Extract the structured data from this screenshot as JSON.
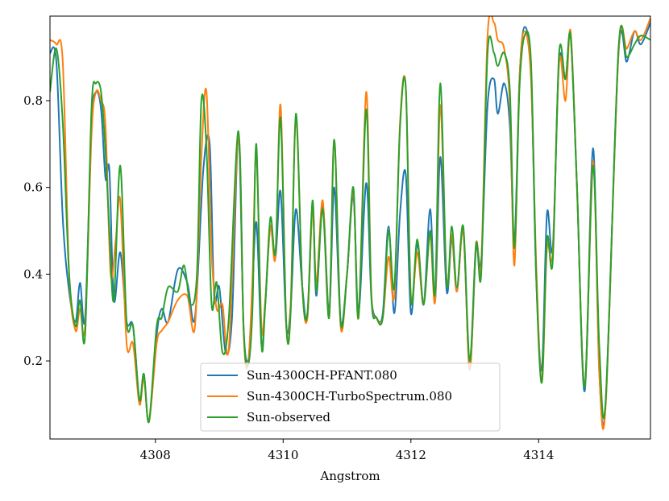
{
  "chart_data": {
    "type": "line",
    "title": "",
    "xlabel": "Angstrom",
    "ylabel": "",
    "xlim": [
      4306.35,
      4315.75
    ],
    "ylim": [
      0.02,
      0.995
    ],
    "xticks": [
      4308,
      4310,
      4312,
      4314
    ],
    "yticks": [
      0.2,
      0.4,
      0.6,
      0.8
    ],
    "legend_position": "lower-center",
    "series": [
      {
        "name": "Sun-4300CH-PFANT.080",
        "color": "#1f77b4",
        "points": [
          [
            4306.35,
            0.91
          ],
          [
            4306.45,
            0.89
          ],
          [
            4306.55,
            0.53
          ],
          [
            4306.65,
            0.36
          ],
          [
            4306.75,
            0.29
          ],
          [
            4306.82,
            0.38
          ],
          [
            4306.9,
            0.3
          ],
          [
            4307.0,
            0.74
          ],
          [
            4307.07,
            0.82
          ],
          [
            4307.15,
            0.78
          ],
          [
            4307.22,
            0.62
          ],
          [
            4307.28,
            0.64
          ],
          [
            4307.35,
            0.34
          ],
          [
            4307.45,
            0.45
          ],
          [
            4307.55,
            0.29
          ],
          [
            4307.65,
            0.28
          ],
          [
            4307.75,
            0.11
          ],
          [
            4307.82,
            0.17
          ],
          [
            4307.9,
            0.06
          ],
          [
            4308.02,
            0.26
          ],
          [
            4308.1,
            0.32
          ],
          [
            4308.2,
            0.29
          ],
          [
            4308.35,
            0.41
          ],
          [
            4308.5,
            0.38
          ],
          [
            4308.62,
            0.3
          ],
          [
            4308.75,
            0.64
          ],
          [
            4308.85,
            0.7
          ],
          [
            4308.92,
            0.35
          ],
          [
            4309.0,
            0.37
          ],
          [
            4309.1,
            0.22
          ],
          [
            4309.2,
            0.3
          ],
          [
            4309.3,
            0.72
          ],
          [
            4309.38,
            0.28
          ],
          [
            4309.45,
            0.2
          ],
          [
            4309.5,
            0.3
          ],
          [
            4309.58,
            0.52
          ],
          [
            4309.66,
            0.24
          ],
          [
            4309.72,
            0.33
          ],
          [
            4309.8,
            0.51
          ],
          [
            4309.88,
            0.44
          ],
          [
            4309.96,
            0.59
          ],
          [
            4310.05,
            0.28
          ],
          [
            4310.12,
            0.33
          ],
          [
            4310.2,
            0.55
          ],
          [
            4310.3,
            0.37
          ],
          [
            4310.38,
            0.3
          ],
          [
            4310.46,
            0.56
          ],
          [
            4310.52,
            0.35
          ],
          [
            4310.62,
            0.56
          ],
          [
            4310.72,
            0.31
          ],
          [
            4310.8,
            0.6
          ],
          [
            4310.9,
            0.29
          ],
          [
            4311.0,
            0.4
          ],
          [
            4311.1,
            0.58
          ],
          [
            4311.18,
            0.31
          ],
          [
            4311.3,
            0.61
          ],
          [
            4311.38,
            0.35
          ],
          [
            4311.46,
            0.3
          ],
          [
            4311.56,
            0.31
          ],
          [
            4311.65,
            0.51
          ],
          [
            4311.74,
            0.31
          ],
          [
            4311.83,
            0.54
          ],
          [
            4311.92,
            0.63
          ],
          [
            4312.0,
            0.31
          ],
          [
            4312.1,
            0.47
          ],
          [
            4312.2,
            0.33
          ],
          [
            4312.3,
            0.55
          ],
          [
            4312.38,
            0.34
          ],
          [
            4312.46,
            0.67
          ],
          [
            4312.56,
            0.36
          ],
          [
            4312.64,
            0.48
          ],
          [
            4312.72,
            0.36
          ],
          [
            4312.82,
            0.5
          ],
          [
            4312.92,
            0.18
          ],
          [
            4313.02,
            0.46
          ],
          [
            4313.1,
            0.43
          ],
          [
            4313.2,
            0.79
          ],
          [
            4313.3,
            0.85
          ],
          [
            4313.36,
            0.77
          ],
          [
            4313.46,
            0.84
          ],
          [
            4313.55,
            0.74
          ],
          [
            4313.62,
            0.47
          ],
          [
            4313.7,
            0.85
          ],
          [
            4313.78,
            0.97
          ],
          [
            4313.88,
            0.86
          ],
          [
            4313.96,
            0.4
          ],
          [
            4314.05,
            0.18
          ],
          [
            4314.13,
            0.54
          ],
          [
            4314.22,
            0.46
          ],
          [
            4314.32,
            0.89
          ],
          [
            4314.42,
            0.85
          ],
          [
            4314.5,
            0.95
          ],
          [
            4314.6,
            0.6
          ],
          [
            4314.72,
            0.13
          ],
          [
            4314.85,
            0.69
          ],
          [
            4314.95,
            0.17
          ],
          [
            4315.05,
            0.11
          ],
          [
            4315.25,
            0.91
          ],
          [
            4315.38,
            0.89
          ],
          [
            4315.5,
            0.96
          ],
          [
            4315.6,
            0.93
          ],
          [
            4315.75,
            0.98
          ]
        ]
      },
      {
        "name": "Sun-4300CH-TurboSpectrum.080",
        "color": "#ff7f0e",
        "points": [
          [
            4306.35,
            0.94
          ],
          [
            4306.45,
            0.93
          ],
          [
            4306.55,
            0.89
          ],
          [
            4306.65,
            0.4
          ],
          [
            4306.75,
            0.27
          ],
          [
            4306.82,
            0.32
          ],
          [
            4306.9,
            0.28
          ],
          [
            4307.0,
            0.72
          ],
          [
            4307.07,
            0.82
          ],
          [
            4307.15,
            0.8
          ],
          [
            4307.22,
            0.74
          ],
          [
            4307.3,
            0.4
          ],
          [
            4307.38,
            0.48
          ],
          [
            4307.45,
            0.57
          ],
          [
            4307.55,
            0.24
          ],
          [
            4307.65,
            0.24
          ],
          [
            4307.75,
            0.1
          ],
          [
            4307.82,
            0.16
          ],
          [
            4307.9,
            0.06
          ],
          [
            4308.02,
            0.24
          ],
          [
            4308.1,
            0.27
          ],
          [
            4308.2,
            0.29
          ],
          [
            4308.35,
            0.34
          ],
          [
            4308.5,
            0.35
          ],
          [
            4308.62,
            0.28
          ],
          [
            4308.72,
            0.67
          ],
          [
            4308.8,
            0.82
          ],
          [
            4308.88,
            0.45
          ],
          [
            4308.96,
            0.32
          ],
          [
            4309.05,
            0.33
          ],
          [
            4309.15,
            0.23
          ],
          [
            4309.3,
            0.72
          ],
          [
            4309.38,
            0.27
          ],
          [
            4309.45,
            0.19
          ],
          [
            4309.52,
            0.39
          ],
          [
            4309.58,
            0.68
          ],
          [
            4309.66,
            0.28
          ],
          [
            4309.72,
            0.34
          ],
          [
            4309.8,
            0.51
          ],
          [
            4309.88,
            0.44
          ],
          [
            4309.96,
            0.79
          ],
          [
            4310.05,
            0.28
          ],
          [
            4310.12,
            0.34
          ],
          [
            4310.2,
            0.76
          ],
          [
            4310.3,
            0.37
          ],
          [
            4310.38,
            0.3
          ],
          [
            4310.46,
            0.55
          ],
          [
            4310.52,
            0.38
          ],
          [
            4310.62,
            0.57
          ],
          [
            4310.72,
            0.3
          ],
          [
            4310.8,
            0.71
          ],
          [
            4310.9,
            0.28
          ],
          [
            4311.0,
            0.4
          ],
          [
            4311.1,
            0.59
          ],
          [
            4311.18,
            0.3
          ],
          [
            4311.3,
            0.82
          ],
          [
            4311.38,
            0.36
          ],
          [
            4311.46,
            0.3
          ],
          [
            4311.56,
            0.3
          ],
          [
            4311.65,
            0.44
          ],
          [
            4311.74,
            0.35
          ],
          [
            4311.83,
            0.75
          ],
          [
            4311.92,
            0.83
          ],
          [
            4312.0,
            0.35
          ],
          [
            4312.1,
            0.45
          ],
          [
            4312.2,
            0.33
          ],
          [
            4312.3,
            0.49
          ],
          [
            4312.38,
            0.34
          ],
          [
            4312.46,
            0.79
          ],
          [
            4312.56,
            0.38
          ],
          [
            4312.64,
            0.49
          ],
          [
            4312.72,
            0.36
          ],
          [
            4312.82,
            0.5
          ],
          [
            4312.92,
            0.18
          ],
          [
            4313.02,
            0.47
          ],
          [
            4313.1,
            0.42
          ],
          [
            4313.2,
            0.95
          ],
          [
            4313.3,
            0.98
          ],
          [
            4313.36,
            0.94
          ],
          [
            4313.46,
            0.92
          ],
          [
            4313.55,
            0.79
          ],
          [
            4313.62,
            0.42
          ],
          [
            4313.7,
            0.85
          ],
          [
            4313.78,
            0.96
          ],
          [
            4313.88,
            0.85
          ],
          [
            4313.96,
            0.43
          ],
          [
            4314.05,
            0.15
          ],
          [
            4314.13,
            0.46
          ],
          [
            4314.22,
            0.45
          ],
          [
            4314.32,
            0.89
          ],
          [
            4314.42,
            0.8
          ],
          [
            4314.5,
            0.96
          ],
          [
            4314.6,
            0.6
          ],
          [
            4314.72,
            0.14
          ],
          [
            4314.85,
            0.66
          ],
          [
            4314.95,
            0.17
          ],
          [
            4315.05,
            0.1
          ],
          [
            4315.25,
            0.91
          ],
          [
            4315.38,
            0.92
          ],
          [
            4315.5,
            0.96
          ],
          [
            4315.6,
            0.94
          ],
          [
            4315.75,
            0.99
          ]
        ]
      },
      {
        "name": "Sun-observed",
        "color": "#2ca02c",
        "points": [
          [
            4306.35,
            0.82
          ],
          [
            4306.45,
            0.92
          ],
          [
            4306.55,
            0.75
          ],
          [
            4306.65,
            0.4
          ],
          [
            4306.75,
            0.28
          ],
          [
            4306.82,
            0.34
          ],
          [
            4306.9,
            0.26
          ],
          [
            4307.0,
            0.78
          ],
          [
            4307.07,
            0.84
          ],
          [
            4307.15,
            0.82
          ],
          [
            4307.22,
            0.68
          ],
          [
            4307.28,
            0.5
          ],
          [
            4307.35,
            0.34
          ],
          [
            4307.45,
            0.65
          ],
          [
            4307.55,
            0.29
          ],
          [
            4307.65,
            0.28
          ],
          [
            4307.75,
            0.11
          ],
          [
            4307.82,
            0.17
          ],
          [
            4307.9,
            0.06
          ],
          [
            4308.02,
            0.28
          ],
          [
            4308.1,
            0.3
          ],
          [
            4308.2,
            0.37
          ],
          [
            4308.35,
            0.36
          ],
          [
            4308.45,
            0.42
          ],
          [
            4308.55,
            0.33
          ],
          [
            4308.65,
            0.4
          ],
          [
            4308.72,
            0.8
          ],
          [
            4308.8,
            0.69
          ],
          [
            4308.88,
            0.33
          ],
          [
            4308.96,
            0.38
          ],
          [
            4309.05,
            0.22
          ],
          [
            4309.15,
            0.3
          ],
          [
            4309.3,
            0.73
          ],
          [
            4309.38,
            0.28
          ],
          [
            4309.45,
            0.19
          ],
          [
            4309.52,
            0.32
          ],
          [
            4309.58,
            0.7
          ],
          [
            4309.66,
            0.24
          ],
          [
            4309.72,
            0.33
          ],
          [
            4309.8,
            0.53
          ],
          [
            4309.88,
            0.45
          ],
          [
            4309.96,
            0.76
          ],
          [
            4310.05,
            0.28
          ],
          [
            4310.12,
            0.32
          ],
          [
            4310.2,
            0.77
          ],
          [
            4310.3,
            0.37
          ],
          [
            4310.38,
            0.31
          ],
          [
            4310.46,
            0.57
          ],
          [
            4310.52,
            0.36
          ],
          [
            4310.62,
            0.55
          ],
          [
            4310.72,
            0.3
          ],
          [
            4310.8,
            0.71
          ],
          [
            4310.9,
            0.29
          ],
          [
            4311.0,
            0.4
          ],
          [
            4311.1,
            0.6
          ],
          [
            4311.18,
            0.3
          ],
          [
            4311.3,
            0.78
          ],
          [
            4311.38,
            0.35
          ],
          [
            4311.46,
            0.3
          ],
          [
            4311.56,
            0.3
          ],
          [
            4311.65,
            0.5
          ],
          [
            4311.74,
            0.37
          ],
          [
            4311.83,
            0.74
          ],
          [
            4311.92,
            0.83
          ],
          [
            4312.0,
            0.34
          ],
          [
            4312.1,
            0.48
          ],
          [
            4312.2,
            0.33
          ],
          [
            4312.3,
            0.5
          ],
          [
            4312.38,
            0.36
          ],
          [
            4312.46,
            0.84
          ],
          [
            4312.56,
            0.38
          ],
          [
            4312.64,
            0.51
          ],
          [
            4312.72,
            0.37
          ],
          [
            4312.82,
            0.51
          ],
          [
            4312.92,
            0.2
          ],
          [
            4313.02,
            0.47
          ],
          [
            4313.1,
            0.4
          ],
          [
            4313.2,
            0.91
          ],
          [
            4313.3,
            0.91
          ],
          [
            4313.36,
            0.88
          ],
          [
            4313.46,
            0.91
          ],
          [
            4313.55,
            0.82
          ],
          [
            4313.62,
            0.46
          ],
          [
            4313.7,
            0.83
          ],
          [
            4313.78,
            0.95
          ],
          [
            4313.88,
            0.89
          ],
          [
            4313.96,
            0.4
          ],
          [
            4314.05,
            0.15
          ],
          [
            4314.13,
            0.48
          ],
          [
            4314.22,
            0.43
          ],
          [
            4314.32,
            0.91
          ],
          [
            4314.42,
            0.85
          ],
          [
            4314.5,
            0.95
          ],
          [
            4314.6,
            0.6
          ],
          [
            4314.72,
            0.14
          ],
          [
            4314.85,
            0.65
          ],
          [
            4314.95,
            0.23
          ],
          [
            4315.05,
            0.11
          ],
          [
            4315.25,
            0.92
          ],
          [
            4315.38,
            0.9
          ],
          [
            4315.5,
            0.93
          ],
          [
            4315.6,
            0.95
          ],
          [
            4315.75,
            0.94
          ]
        ]
      }
    ]
  }
}
